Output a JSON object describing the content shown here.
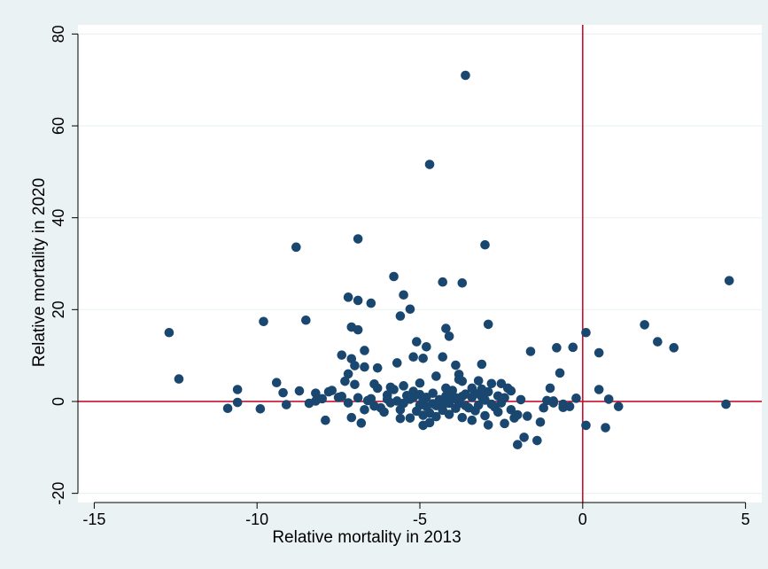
{
  "chart_data": {
    "type": "scatter",
    "title": "",
    "xlabel": "Relative mortality in 2013",
    "ylabel": "Relative mortality in 2020",
    "xlim": [
      -15.5,
      5.5
    ],
    "ylim": [
      -22,
      82
    ],
    "xticks": [
      -15,
      -10,
      -5,
      0,
      5
    ],
    "yticks": [
      -20,
      0,
      20,
      40,
      60,
      80
    ],
    "xtick_labels": [
      "-15",
      "-10",
      "-5",
      "0",
      "5"
    ],
    "ytick_labels": [
      "-20",
      "0",
      "20",
      "40",
      "60",
      "80"
    ],
    "grid": "horizontal",
    "legend": "none",
    "reference_lines": {
      "x": 0,
      "y": 0,
      "color": "#c8102e"
    },
    "colors": {
      "marker": "#1a476f",
      "plot_background": "#ffffff",
      "outer_background": "#eaf2f3",
      "grid": "#eaf2f3"
    },
    "series": [
      {
        "points": [
          [
            -3.6,
            71
          ],
          [
            -4.7,
            51.6
          ],
          [
            -6.9,
            35.4
          ],
          [
            -8.8,
            33.6
          ],
          [
            -3.0,
            34.1
          ],
          [
            -5.8,
            27.2
          ],
          [
            -4.3,
            26.0
          ],
          [
            -3.7,
            25.8
          ],
          [
            -5.5,
            23.2
          ],
          [
            -7.2,
            22.7
          ],
          [
            -6.9,
            22.0
          ],
          [
            -6.5,
            21.4
          ],
          [
            -5.3,
            20.1
          ],
          [
            -5.6,
            18.6
          ],
          [
            -8.5,
            17.7
          ],
          [
            -9.8,
            17.4
          ],
          [
            -2.9,
            16.8
          ],
          [
            -7.1,
            16.2
          ],
          [
            -6.9,
            15.6
          ],
          [
            -4.2,
            15.9
          ],
          [
            -4.1,
            14.2
          ],
          [
            -12.7,
            15.0
          ],
          [
            0.1,
            15.0
          ],
          [
            1.9,
            16.7
          ],
          [
            2.3,
            13.0
          ],
          [
            2.8,
            11.7
          ],
          [
            0.5,
            10.6
          ],
          [
            4.5,
            26.3
          ],
          [
            -5.1,
            13.0
          ],
          [
            -6.7,
            11.1
          ],
          [
            -4.8,
            11.9
          ],
          [
            -4.3,
            9.7
          ],
          [
            -3.9,
            7.9
          ],
          [
            -3.1,
            8.1
          ],
          [
            -4.9,
            9.4
          ],
          [
            -5.2,
            9.7
          ],
          [
            -6.3,
            7.3
          ],
          [
            -6.7,
            7.5
          ],
          [
            -7.4,
            10.1
          ],
          [
            -7.1,
            9.3
          ],
          [
            -7.2,
            6.0
          ],
          [
            -7.0,
            7.8
          ],
          [
            -5.7,
            8.4
          ],
          [
            -3.8,
            5.9
          ],
          [
            -4.5,
            5.5
          ],
          [
            -3.7,
            4.4
          ],
          [
            -3.2,
            4.5
          ],
          [
            -2.8,
            3.9
          ],
          [
            -3.1,
            2.7
          ],
          [
            -2.5,
            3.9
          ],
          [
            -2.2,
            2.3
          ],
          [
            -1.6,
            10.9
          ],
          [
            -0.8,
            11.7
          ],
          [
            -0.3,
            11.8
          ],
          [
            -0.7,
            6.2
          ],
          [
            -1.0,
            2.9
          ],
          [
            -1.1,
            0.2
          ],
          [
            -0.9,
            0.1
          ],
          [
            -0.6,
            -0.6
          ],
          [
            -0.4,
            -1.1
          ],
          [
            -0.2,
            0.7
          ],
          [
            0.1,
            -5.2
          ],
          [
            0.5,
            2.6
          ],
          [
            0.8,
            0.5
          ],
          [
            1.1,
            -1.1
          ],
          [
            0.7,
            -5.7
          ],
          [
            4.4,
            -0.6
          ],
          [
            -1.3,
            -4.5
          ],
          [
            -1.4,
            -8.5
          ],
          [
            -1.8,
            -7.8
          ],
          [
            -2.0,
            -9.4
          ],
          [
            -2.4,
            -4.8
          ],
          [
            -2.9,
            -5.1
          ],
          [
            -3.4,
            -4.1
          ],
          [
            -3.7,
            -3.5
          ],
          [
            -4.1,
            -2.8
          ],
          [
            -4.7,
            -4.6
          ],
          [
            -4.9,
            -5.2
          ],
          [
            -5.3,
            -3.6
          ],
          [
            -5.6,
            -1.8
          ],
          [
            -6.1,
            -2.3
          ],
          [
            -6.4,
            -1.0
          ],
          [
            -6.8,
            -4.7
          ],
          [
            -7.1,
            -3.5
          ],
          [
            -7.9,
            -4.1
          ],
          [
            -8.2,
            0.1
          ],
          [
            -8.4,
            -0.4
          ],
          [
            -9.1,
            -0.7
          ],
          [
            -9.9,
            -1.6
          ],
          [
            -10.6,
            -0.2
          ],
          [
            -10.9,
            -1.5
          ],
          [
            -10.6,
            2.6
          ],
          [
            -12.4,
            4.9
          ],
          [
            -9.4,
            4.1
          ],
          [
            -9.2,
            1.9
          ],
          [
            -8.7,
            2.3
          ],
          [
            -8.2,
            1.8
          ],
          [
            -7.8,
            2.1
          ],
          [
            -7.4,
            1.1
          ],
          [
            -6.9,
            0.8
          ],
          [
            -6.6,
            0.2
          ],
          [
            -6.3,
            2.9
          ],
          [
            -6.0,
            1.4
          ],
          [
            -5.8,
            2.6
          ],
          [
            -5.5,
            3.4
          ],
          [
            -5.2,
            2.2
          ],
          [
            -5.0,
            1.5
          ],
          [
            -4.8,
            0.9
          ],
          [
            -4.6,
            1.8
          ],
          [
            -4.4,
            0.4
          ],
          [
            -4.2,
            1.2
          ],
          [
            -4.0,
            0.6
          ],
          [
            -3.8,
            -0.4
          ],
          [
            -3.6,
            1.6
          ],
          [
            -3.4,
            0.9
          ],
          [
            -3.2,
            -0.8
          ],
          [
            -3.0,
            0.3
          ],
          [
            -2.7,
            -1.2
          ],
          [
            -2.5,
            -0.3
          ],
          [
            -2.2,
            -1.8
          ],
          [
            -2.0,
            -2.9
          ],
          [
            -1.9,
            0.4
          ],
          [
            -2.3,
            2.9
          ],
          [
            -3.3,
            1.7
          ],
          [
            -3.9,
            -1.5
          ],
          [
            -4.3,
            -1.9
          ],
          [
            -4.5,
            -0.9
          ],
          [
            -4.7,
            -2.5
          ],
          [
            -5.0,
            -0.8
          ],
          [
            -5.1,
            -2.1
          ],
          [
            -5.3,
            0.5
          ],
          [
            -5.5,
            -0.4
          ],
          [
            -5.7,
            0.1
          ],
          [
            -6.2,
            -1.4
          ],
          [
            -6.5,
            0.6
          ],
          [
            -6.7,
            -1.8
          ],
          [
            -7.2,
            -0.3
          ],
          [
            -7.5,
            0.9
          ],
          [
            -7.7,
            2.4
          ],
          [
            -8.0,
            0.6
          ],
          [
            -4.9,
            0.3
          ],
          [
            -4.6,
            -0.5
          ],
          [
            -4.3,
            -0.9
          ],
          [
            -4.0,
            2.4
          ],
          [
            -3.7,
            1.1
          ],
          [
            -3.5,
            -1.4
          ],
          [
            -3.3,
            -2.0
          ],
          [
            -3.1,
            1.0
          ],
          [
            -2.8,
            -0.6
          ],
          [
            -2.6,
            1.2
          ],
          [
            -4.8,
            -1.1
          ],
          [
            -5.2,
            0.9
          ],
          [
            -4.4,
            -0.2
          ],
          [
            -4.1,
            -0.4
          ],
          [
            -5.4,
            1.3
          ],
          [
            -6.0,
            0.5
          ],
          [
            -5.9,
            -0.3
          ],
          [
            -4.2,
            0.1
          ],
          [
            -3.9,
            0.8
          ],
          [
            -3.6,
            -0.9
          ],
          [
            -0.6,
            -1.3
          ],
          [
            -0.9,
            -0.3
          ],
          [
            -1.2,
            -1.4
          ],
          [
            -1.7,
            -3.2
          ],
          [
            -2.1,
            -3.6
          ],
          [
            -2.6,
            -2.3
          ],
          [
            -3.0,
            -3.1
          ],
          [
            -4.5,
            -3.3
          ],
          [
            -4.9,
            -3.0
          ],
          [
            -5.6,
            -3.7
          ],
          [
            -3.8,
            4.8
          ],
          [
            -4.2,
            2.9
          ],
          [
            -5.0,
            4.0
          ],
          [
            -5.9,
            3.1
          ],
          [
            -6.4,
            3.8
          ],
          [
            -7.0,
            3.7
          ],
          [
            -7.3,
            4.4
          ],
          [
            -3.4,
            2.9
          ],
          [
            -2.9,
            2.1
          ],
          [
            -2.4,
            0.8
          ]
        ]
      }
    ]
  }
}
